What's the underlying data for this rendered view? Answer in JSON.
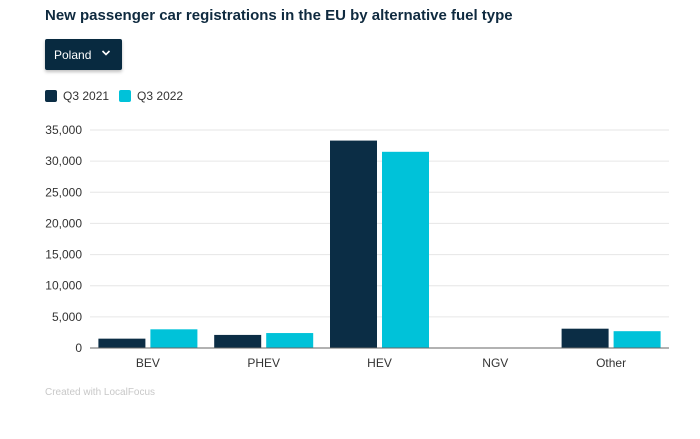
{
  "title": "New passenger car registrations in the EU by alternative fuel type",
  "dropdown": {
    "selected": "Poland"
  },
  "legend": {
    "items": [
      "Q3 2021",
      "Q3 2022"
    ]
  },
  "credit": "Created with LocalFocus",
  "colors": {
    "series1": "#0b2d45",
    "series2": "#00c2d9"
  },
  "chart_data": {
    "type": "bar",
    "title": "New passenger car registrations in the EU by alternative fuel type",
    "categories": [
      "BEV",
      "PHEV",
      "HEV",
      "NGV",
      "Other"
    ],
    "series": [
      {
        "name": "Q3 2021",
        "values": [
          1500,
          2100,
          33300,
          0,
          3100
        ]
      },
      {
        "name": "Q3 2022",
        "values": [
          3000,
          2400,
          31500,
          0,
          2700
        ]
      }
    ],
    "yticks": [
      "0",
      "5,000",
      "10,000",
      "15,000",
      "20,000",
      "25,000",
      "30,000",
      "35,000"
    ],
    "ylim": [
      0,
      35000
    ],
    "xlabel": "",
    "ylabel": "",
    "grid": true,
    "legend_position": "top-left"
  }
}
